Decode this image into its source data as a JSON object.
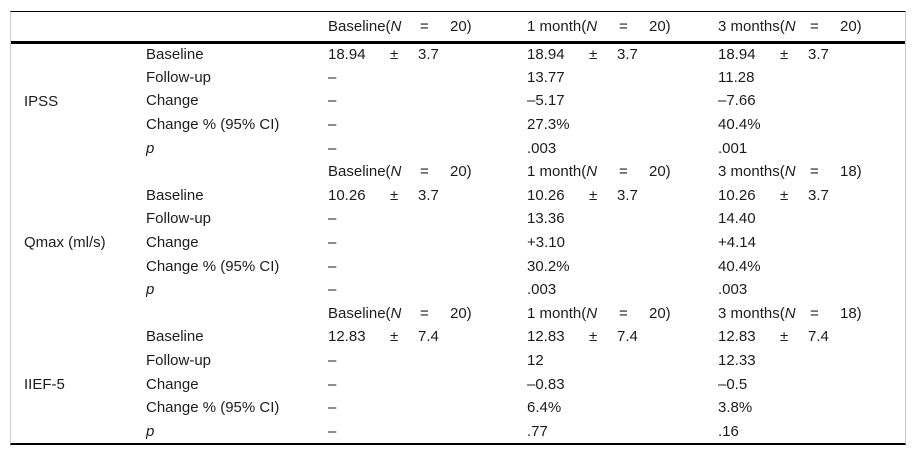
{
  "table": {
    "header": {
      "baseline": {
        "pre": "Baseline(",
        "n": "N",
        "eq": "=",
        "count": "20)"
      },
      "month1": {
        "pre": "1 month(",
        "n": "N",
        "eq": "=",
        "count": "20)"
      },
      "months3": {
        "pre": "3 months(",
        "n": "N",
        "eq": "=",
        "count": "20)"
      }
    },
    "groups": [
      {
        "label": "IPSS",
        "rows": {
          "baseline": {
            "label": "Baseline",
            "c3": {
              "mean": "18.94",
              "pm": "±",
              "sd": "3.7"
            },
            "c4": {
              "mean": "18.94",
              "pm": "±",
              "sd": "3.7"
            },
            "c5": {
              "mean": "18.94",
              "pm": "±",
              "sd": "3.7"
            }
          },
          "followup": {
            "label": "Follow-up",
            "c3": "–",
            "c4": "13.77",
            "c5": "11.28"
          },
          "change": {
            "label": "Change",
            "c3": "–",
            "c4": "–5.17",
            "c5": "–7.66"
          },
          "changepct": {
            "label": "Change % (95% CI)",
            "c3": "–",
            "c4": "27.3%",
            "c5": "40.4%"
          },
          "p": {
            "label": "p",
            "c3": "–",
            "c4": ".003",
            "c5": ".001"
          }
        }
      },
      {
        "label": "Qmax (ml/s)",
        "subheader": {
          "baseline": {
            "pre": "Baseline(",
            "n": "N",
            "eq": "=",
            "count": "20)"
          },
          "month1": {
            "pre": "1 month(",
            "n": "N",
            "eq": "=",
            "count": "20)"
          },
          "months3": {
            "pre": "3 months(",
            "n": "N",
            "eq": "=",
            "count": "18)"
          }
        },
        "rows": {
          "baseline": {
            "label": "Baseline",
            "c3": {
              "mean": "10.26",
              "pm": "±",
              "sd": "3.7"
            },
            "c4": {
              "mean": "10.26",
              "pm": "±",
              "sd": "3.7"
            },
            "c5": {
              "mean": "10.26",
              "pm": "±",
              "sd": "3.7"
            }
          },
          "followup": {
            "label": "Follow-up",
            "c3": "–",
            "c4": "13.36",
            "c5": "14.40"
          },
          "change": {
            "label": "Change",
            "c3": "–",
            "c4": "+3.10",
            "c5": "+4.14"
          },
          "changepct": {
            "label": "Change % (95% CI)",
            "c3": "–",
            "c4": "30.2%",
            "c5": "40.4%"
          },
          "p": {
            "label": "p",
            "c3": "–",
            "c4": ".003",
            "c5": ".003"
          }
        }
      },
      {
        "label": "IIEF-5",
        "subheader": {
          "baseline": {
            "pre": "Baseline(",
            "n": "N",
            "eq": "=",
            "count": "20)"
          },
          "month1": {
            "pre": "1 month(",
            "n": "N",
            "eq": "=",
            "count": "20)"
          },
          "months3": {
            "pre": "3 months(",
            "n": "N",
            "eq": "=",
            "count": "18)"
          }
        },
        "rows": {
          "baseline": {
            "label": "Baseline",
            "c3": {
              "mean": "12.83",
              "pm": "±",
              "sd": "7.4"
            },
            "c4": {
              "mean": "12.83",
              "pm": "±",
              "sd": "7.4"
            },
            "c5": {
              "mean": "12.83",
              "pm": "±",
              "sd": "7.4"
            }
          },
          "followup": {
            "label": "Follow-up",
            "c3": "–",
            "c4": "12",
            "c5": "12.33"
          },
          "change": {
            "label": "Change",
            "c3": "–",
            "c4": "–0.83",
            "c5": "–0.5"
          },
          "changepct": {
            "label": "Change % (95% CI)",
            "c3": "–",
            "c4": "6.4%",
            "c5": "3.8%"
          },
          "p": {
            "label": "p",
            "c3": "–",
            "c4": ".77",
            "c5": ".16"
          }
        }
      }
    ]
  }
}
